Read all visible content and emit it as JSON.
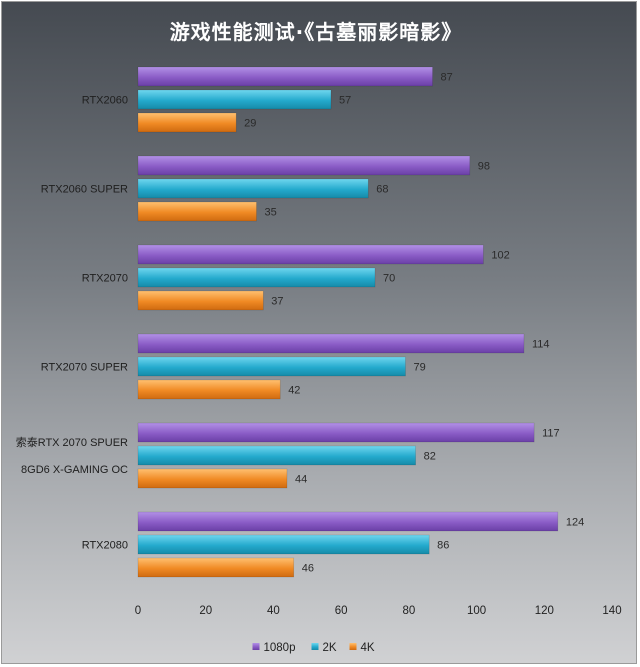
{
  "chart_data": {
    "type": "bar",
    "orientation": "horizontal",
    "title": "游戏性能测试·《古墓丽影暗影》",
    "categories": [
      [
        "RTX2060"
      ],
      [
        "RTX2060 SUPER"
      ],
      [
        "RTX2070"
      ],
      [
        "RTX2070 SUPER"
      ],
      [
        "索泰RTX 2070 SPUER",
        "8GD6 X-GAMING OC"
      ],
      [
        "RTX2080"
      ]
    ],
    "series": [
      {
        "name": "1080p",
        "color": "#8e5fc8",
        "values": [
          87,
          98,
          102,
          114,
          117,
          124
        ]
      },
      {
        "name": "2K",
        "color": "#28b0d0",
        "values": [
          57,
          68,
          70,
          79,
          82,
          86
        ]
      },
      {
        "name": "4K",
        "color": "#f08c28",
        "values": [
          29,
          35,
          37,
          42,
          44,
          46
        ]
      }
    ],
    "xlim": [
      0,
      140
    ],
    "xticks": [
      0,
      20,
      40,
      60,
      80,
      100,
      120,
      140
    ],
    "grid": false,
    "legend_position": "bottom"
  }
}
